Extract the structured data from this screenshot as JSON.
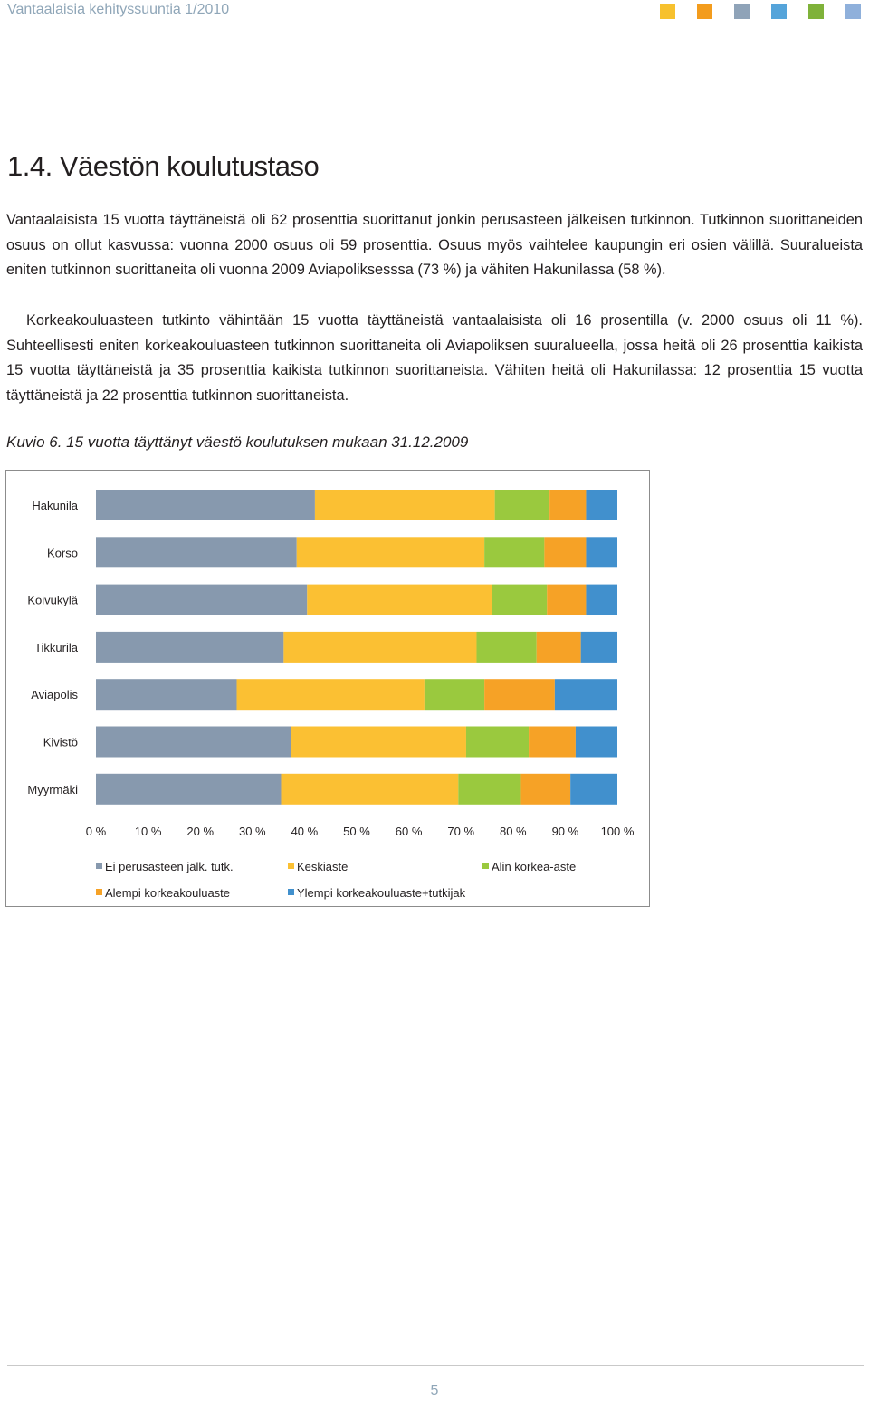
{
  "header": {
    "title": "Vantaalaisia kehityssuuntia 1/2010",
    "squares": [
      "#f7c12e",
      "#f39c1d",
      "#8fa3b8",
      "#55a4da",
      "#7fb23a",
      "#8fb0db"
    ]
  },
  "section_title": "1.4. Väestön koulutustaso",
  "paragraphs": {
    "p1": "Vantaalaisista 15 vuotta täyttäneistä oli 62 prosenttia suorittanut jonkin perusasteen jälkeisen tutkinnon. Tutkinnon suorittaneiden osuus on ollut kasvussa: vuonna 2000 osuus oli 59 prosenttia. Osuus myös vaihtelee kaupungin eri osien välillä. Suuralueista eniten tutkinnon suorittaneita oli vuonna 2009 Aviapoliksesssa (73 %) ja vähiten Hakunilassa (58 %).",
    "p2": "Korkeakouluasteen tutkinto vähintään 15 vuotta täyttäneistä vantaalaisista oli 16 prosentilla (v. 2000 osuus oli 11 %). Suhteellisesti eniten korkeakouluasteen tutkinnon suorittaneita oli Aviapoliksen suuralueella, jossa heitä oli 26 prosenttia kaikista 15 vuotta täyttäneistä ja 35 prosenttia kaikista tutkinnon suorittaneista. Vähiten heitä oli Hakunilassa: 12 prosenttia 15 vuotta täyttäneistä ja 22 prosenttia tutkinnon suorittaneista."
  },
  "caption": "Kuvio 6. 15 vuotta täyttänyt väestö koulutuksen mukaan 31.12.2009",
  "chart_data": {
    "type": "bar",
    "orientation": "horizontal",
    "stacking": "percent",
    "categories": [
      "Hakunila",
      "Korso",
      "Koivukylä",
      "Tikkurila",
      "Aviapolis",
      "Kivistö",
      "Myyrmäki"
    ],
    "xlim": [
      0,
      100
    ],
    "x_ticks": [
      "0 %",
      "10 %",
      "20 %",
      "30 %",
      "40 %",
      "50 %",
      "60 %",
      "70 %",
      "80 %",
      "90 %",
      "100 %"
    ],
    "grid": false,
    "legend_position": "bottom",
    "series": [
      {
        "name": "Ei perusasteen jälk. tutk.",
        "color": "#8799ae",
        "values": [
          42,
          38.5,
          40.5,
          36,
          27,
          37.5,
          35.5
        ]
      },
      {
        "name": "Keskiaste",
        "color": "#fbc033",
        "values": [
          34.5,
          36,
          35.5,
          37,
          36,
          33.5,
          34
        ]
      },
      {
        "name": "Alin korkea-aste",
        "color": "#9ac93e",
        "values": [
          10.5,
          11.5,
          10.5,
          11.5,
          11.5,
          12,
          12
        ]
      },
      {
        "name": "Alempi korkeakouluaste",
        "color": "#f6a226",
        "values": [
          7,
          8,
          7.5,
          8.5,
          13.5,
          9,
          9.5
        ]
      },
      {
        "name": "Ylempi korkeakouluaste+tutkijak",
        "color": "#4190cd",
        "values": [
          6,
          6,
          6,
          7,
          12,
          8,
          9
        ]
      }
    ]
  },
  "page_number": "5"
}
